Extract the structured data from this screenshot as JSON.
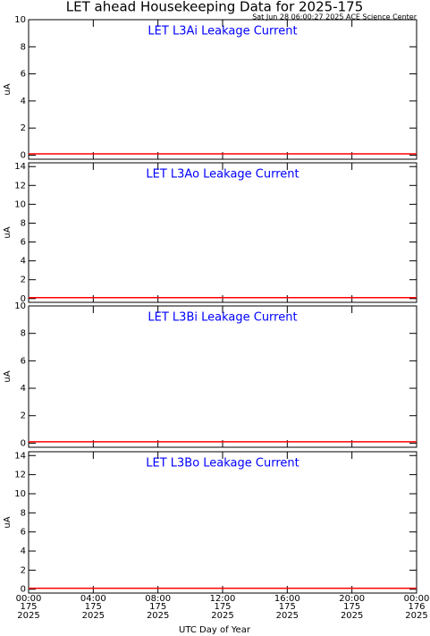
{
  "title": "LET ahead Housekeeping Data for 2025-175",
  "subtitle": "Sat Jun 28 06:00:27 2025 ACE Science Center",
  "x_axis": {
    "label": "UTC Day of Year",
    "xlim": [
      0,
      24
    ],
    "xticks": [
      {
        "value": 0,
        "label": "00:00"
      },
      {
        "value": 4,
        "label": "04:00"
      },
      {
        "value": 8,
        "label": "08:00"
      },
      {
        "value": 12,
        "label": "12:00"
      },
      {
        "value": 16,
        "label": "16:00"
      },
      {
        "value": 20,
        "label": "20:00"
      },
      {
        "value": 24,
        "label": "00:00"
      }
    ],
    "days": [
      "175",
      "175",
      "175",
      "175",
      "175",
      "175",
      "176"
    ],
    "years": [
      "2025",
      "2025",
      "2025",
      "2025",
      "2025",
      "2025",
      "2025"
    ]
  },
  "chart_data": [
    {
      "type": "line",
      "title": "LET L3Ai Leakage Current",
      "ylabel": "uA",
      "ylim": [
        -0.3,
        10
      ],
      "yticks": [
        0,
        2,
        4,
        6,
        8,
        10
      ],
      "x": [
        0,
        24
      ],
      "series": [
        {
          "color": "#ff0000",
          "values": [
            0.1,
            0.1
          ]
        }
      ]
    },
    {
      "type": "line",
      "title": "LET L3Ao Leakage Current",
      "ylabel": "uA",
      "ylim": [
        -0.4,
        14.4
      ],
      "yticks": [
        0,
        2,
        4,
        6,
        8,
        10,
        12,
        14
      ],
      "x": [
        0,
        24
      ],
      "series": [
        {
          "color": "#ff0000",
          "values": [
            0.1,
            0.1
          ]
        }
      ]
    },
    {
      "type": "line",
      "title": "LET L3Bi Leakage Current",
      "ylabel": "uA",
      "ylim": [
        -0.3,
        10
      ],
      "yticks": [
        0,
        2,
        4,
        6,
        8,
        10
      ],
      "x": [
        0,
        24
      ],
      "series": [
        {
          "color": "#ff0000",
          "values": [
            0.1,
            0.1
          ]
        }
      ]
    },
    {
      "type": "line",
      "title": "LET L3Bo Leakage Current",
      "ylabel": "uA",
      "ylim": [
        -0.4,
        14.4
      ],
      "yticks": [
        0,
        2,
        4,
        6,
        8,
        10,
        12,
        14
      ],
      "x": [
        0,
        24
      ],
      "series": [
        {
          "color": "#ff0000",
          "values": [
            0.1,
            0.1
          ]
        }
      ]
    }
  ]
}
